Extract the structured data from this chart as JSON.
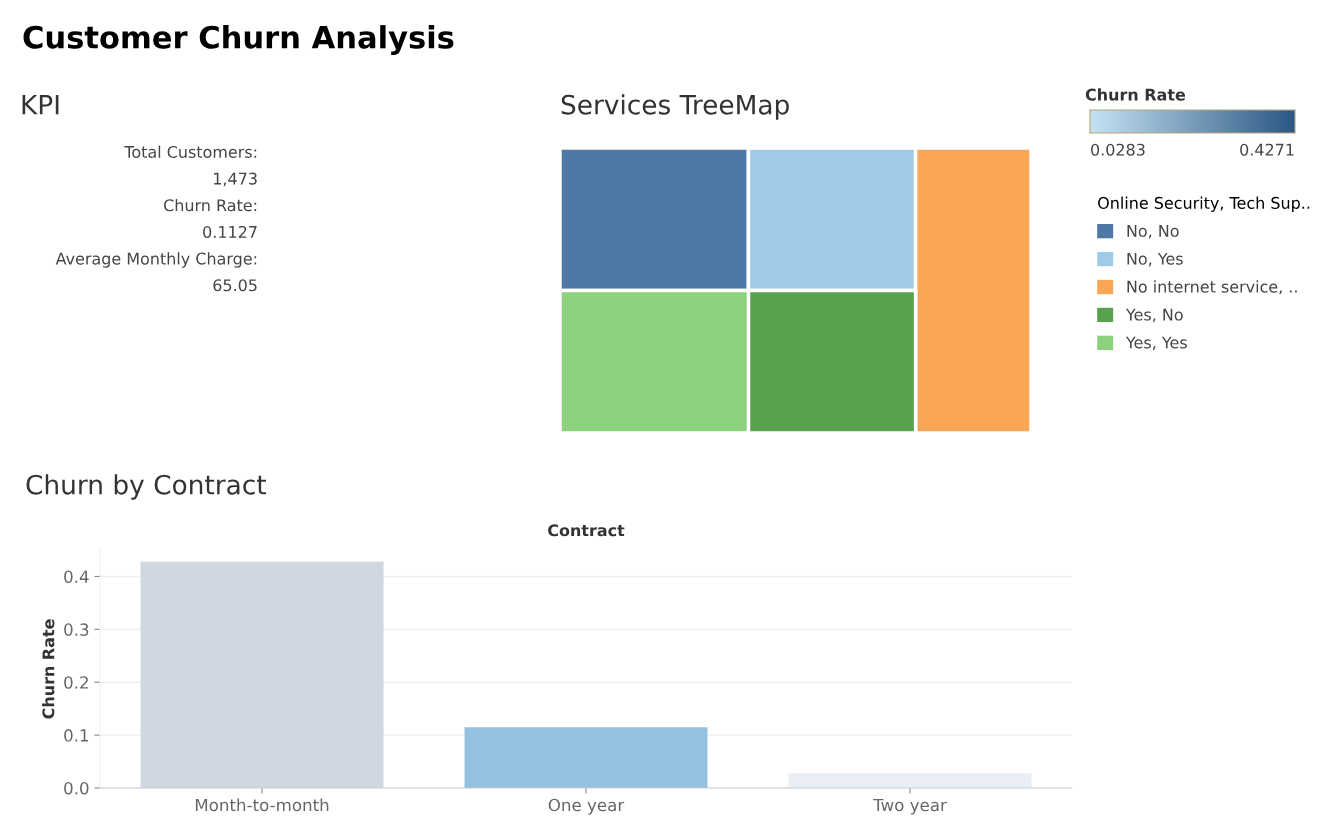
{
  "chart_data": [
    {
      "type": "other",
      "title": "KPI",
      "annotations": [
        "Customer Churn Analysis",
        "Total Customers:",
        "1,473",
        "Churn Rate:",
        "0.1127",
        "Average Monthly Charge:",
        "65.05"
      ]
    },
    {
      "type": "other",
      "title": "Services TreeMap",
      "legend_title": "Online Security, Tech Sup..",
      "categories": [
        "No, No",
        "No, Yes",
        "No internet service, ..",
        "Yes, No",
        "Yes, Yes"
      ],
      "colors": [
        "#4e79a7",
        "#a0cbe8",
        "#f9a655",
        "#59a14f",
        "#8cd17d"
      ],
      "clabel": "Churn Rate",
      "annotations": [
        "0.0283",
        "0.4271"
      ]
    },
    {
      "type": "bar",
      "title": "Churn by Contract",
      "xlabel": "Contract",
      "ylabel": "Churn Rate",
      "categories": [
        "Month-to-month",
        "One year",
        "Two year"
      ],
      "values": [
        0.428,
        0.115,
        0.028
      ],
      "colors": [
        "#cfd7e1",
        "#93c1df",
        "#e8eef3"
      ],
      "ylim": [
        0,
        0.45
      ],
      "yticks": [
        {
          "value": 0,
          "label": "0.0"
        },
        0.1,
        0.2,
        0.3,
        0.4
      ],
      "grid": "y"
    }
  ]
}
